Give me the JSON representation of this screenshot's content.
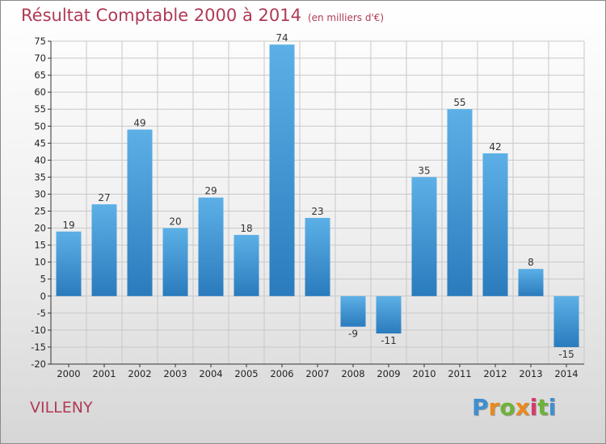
{
  "title": "Résultat Comptable 2000 à 2014",
  "subtitle": "(en milliers d'€)",
  "commune": "VILLENY",
  "logo": {
    "letters": [
      "P",
      "r",
      "o",
      "x",
      "i",
      "t",
      "i"
    ],
    "colors": [
      "#3f8fd0",
      "#e98a1c",
      "#6fb23a",
      "#e98a1c",
      "#d83a6a",
      "#6fb23a",
      "#3f8fd0"
    ]
  },
  "colors": {
    "bar_dark": "#2a7bbd",
    "bar_light": "#5cb0e6",
    "grid": "#c8c8c8",
    "title": "#b03a55"
  },
  "chart_data": {
    "type": "bar",
    "title": "Résultat Comptable 2000 à 2014",
    "subtitle": "(en milliers d'€)",
    "xlabel": "",
    "ylabel": "",
    "categories": [
      "2000",
      "2001",
      "2002",
      "2003",
      "2004",
      "2005",
      "2006",
      "2007",
      "2008",
      "2009",
      "2010",
      "2011",
      "2012",
      "2013",
      "2014"
    ],
    "values": [
      19,
      27,
      49,
      20,
      29,
      18,
      74,
      23,
      -9,
      -11,
      35,
      55,
      42,
      8,
      -15
    ],
    "labels": [
      "19",
      "27",
      "49",
      "20",
      "29",
      "18",
      "74",
      "23",
      "-9",
      "-11",
      "35",
      "55",
      "42",
      "8",
      "-15"
    ],
    "ylim": [
      -20,
      75
    ],
    "yticks": [
      -20,
      -15,
      -10,
      -5,
      0,
      5,
      10,
      15,
      20,
      25,
      30,
      35,
      40,
      45,
      50,
      55,
      60,
      65,
      70,
      75
    ],
    "grid": true,
    "legend": "none"
  }
}
